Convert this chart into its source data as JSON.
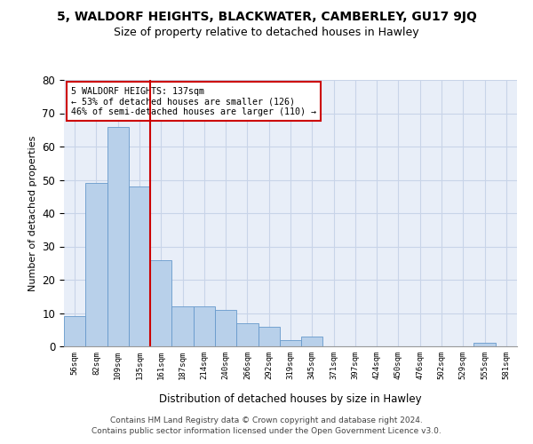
{
  "title": "5, WALDORF HEIGHTS, BLACKWATER, CAMBERLEY, GU17 9JQ",
  "subtitle": "Size of property relative to detached houses in Hawley",
  "xlabel": "Distribution of detached houses by size in Hawley",
  "ylabel": "Number of detached properties",
  "bar_labels": [
    "56sqm",
    "82sqm",
    "109sqm",
    "135sqm",
    "161sqm",
    "187sqm",
    "214sqm",
    "240sqm",
    "266sqm",
    "292sqm",
    "319sqm",
    "345sqm",
    "371sqm",
    "397sqm",
    "424sqm",
    "450sqm",
    "476sqm",
    "502sqm",
    "529sqm",
    "555sqm",
    "581sqm"
  ],
  "bar_values": [
    9,
    49,
    66,
    48,
    26,
    12,
    12,
    11,
    7,
    6,
    2,
    3,
    0,
    0,
    0,
    0,
    0,
    0,
    0,
    1,
    0
  ],
  "bar_color": "#b8d0ea",
  "bar_edgecolor": "#6699cc",
  "property_line_index": 3,
  "property_line_color": "#cc0000",
  "annotation_box_text": "5 WALDORF HEIGHTS: 137sqm\n← 53% of detached houses are smaller (126)\n46% of semi-detached houses are larger (110) →",
  "annotation_box_color": "#cc0000",
  "ylim": [
    0,
    80
  ],
  "yticks": [
    0,
    10,
    20,
    30,
    40,
    50,
    60,
    70,
    80
  ],
  "grid_color": "#c8d4e8",
  "background_color": "#e8eef8",
  "footer_line1": "Contains HM Land Registry data © Crown copyright and database right 2024.",
  "footer_line2": "Contains public sector information licensed under the Open Government Licence v3.0.",
  "title_fontsize": 10,
  "subtitle_fontsize": 9
}
